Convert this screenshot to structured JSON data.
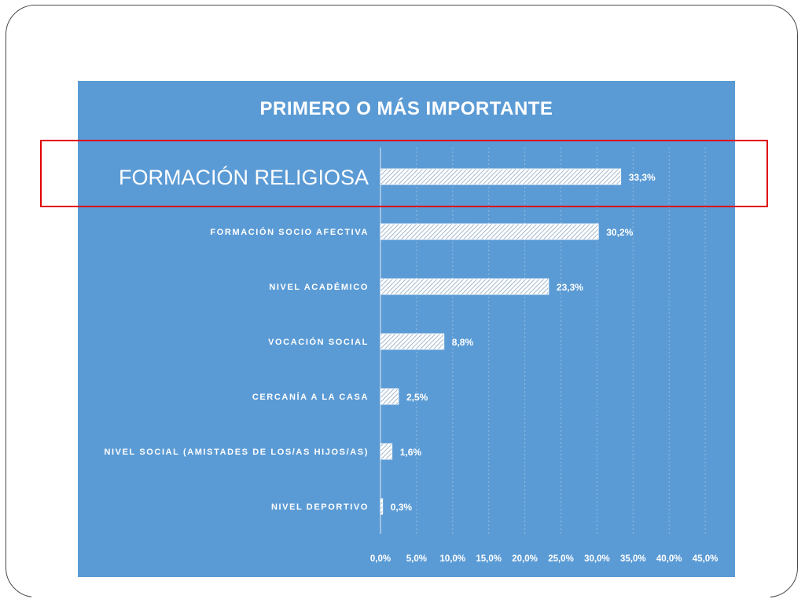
{
  "slide": {
    "frame_color": "#4a4a4a",
    "panel_color": "#5b9bd5",
    "highlight_color": "#e00000"
  },
  "chart_data": {
    "type": "bar",
    "orientation": "horizontal",
    "title": "PRIMERO O MÁS IMPORTANTE",
    "categories": [
      "FORMACIÓN RELIGIOSA",
      "FORMACIÓN SOCIO AFECTIVA",
      "NIVEL ACADÉMICO",
      "VOCACIÓN SOCIAL",
      "CERCANÍA A LA CASA",
      "NIVEL SOCIAL (AMISTADES DE LOS/AS HIJOS/AS)",
      "NIVEL DEPORTIVO"
    ],
    "values": [
      33.3,
      30.2,
      23.3,
      8.8,
      2.5,
      1.6,
      0.3
    ],
    "data_labels": [
      "33,3%",
      "30,2%",
      "23,3%",
      "8,8%",
      "2,5%",
      "1,6%",
      "0,3%"
    ],
    "x_ticks": [
      0,
      5,
      10,
      15,
      20,
      25,
      30,
      35,
      40,
      45
    ],
    "x_tick_labels": [
      "0,0%",
      "5,0%",
      "10,0%",
      "15,0%",
      "20,0%",
      "25,0%",
      "30,0%",
      "35,0%",
      "40,0%",
      "45,0%"
    ],
    "xlim": [
      0,
      45
    ],
    "xlabel": "",
    "ylabel": "",
    "grid": "vertical dashed",
    "bar_fill": "diagonal hatch",
    "highlighted_category": "FORMACIÓN RELIGIOSA"
  }
}
